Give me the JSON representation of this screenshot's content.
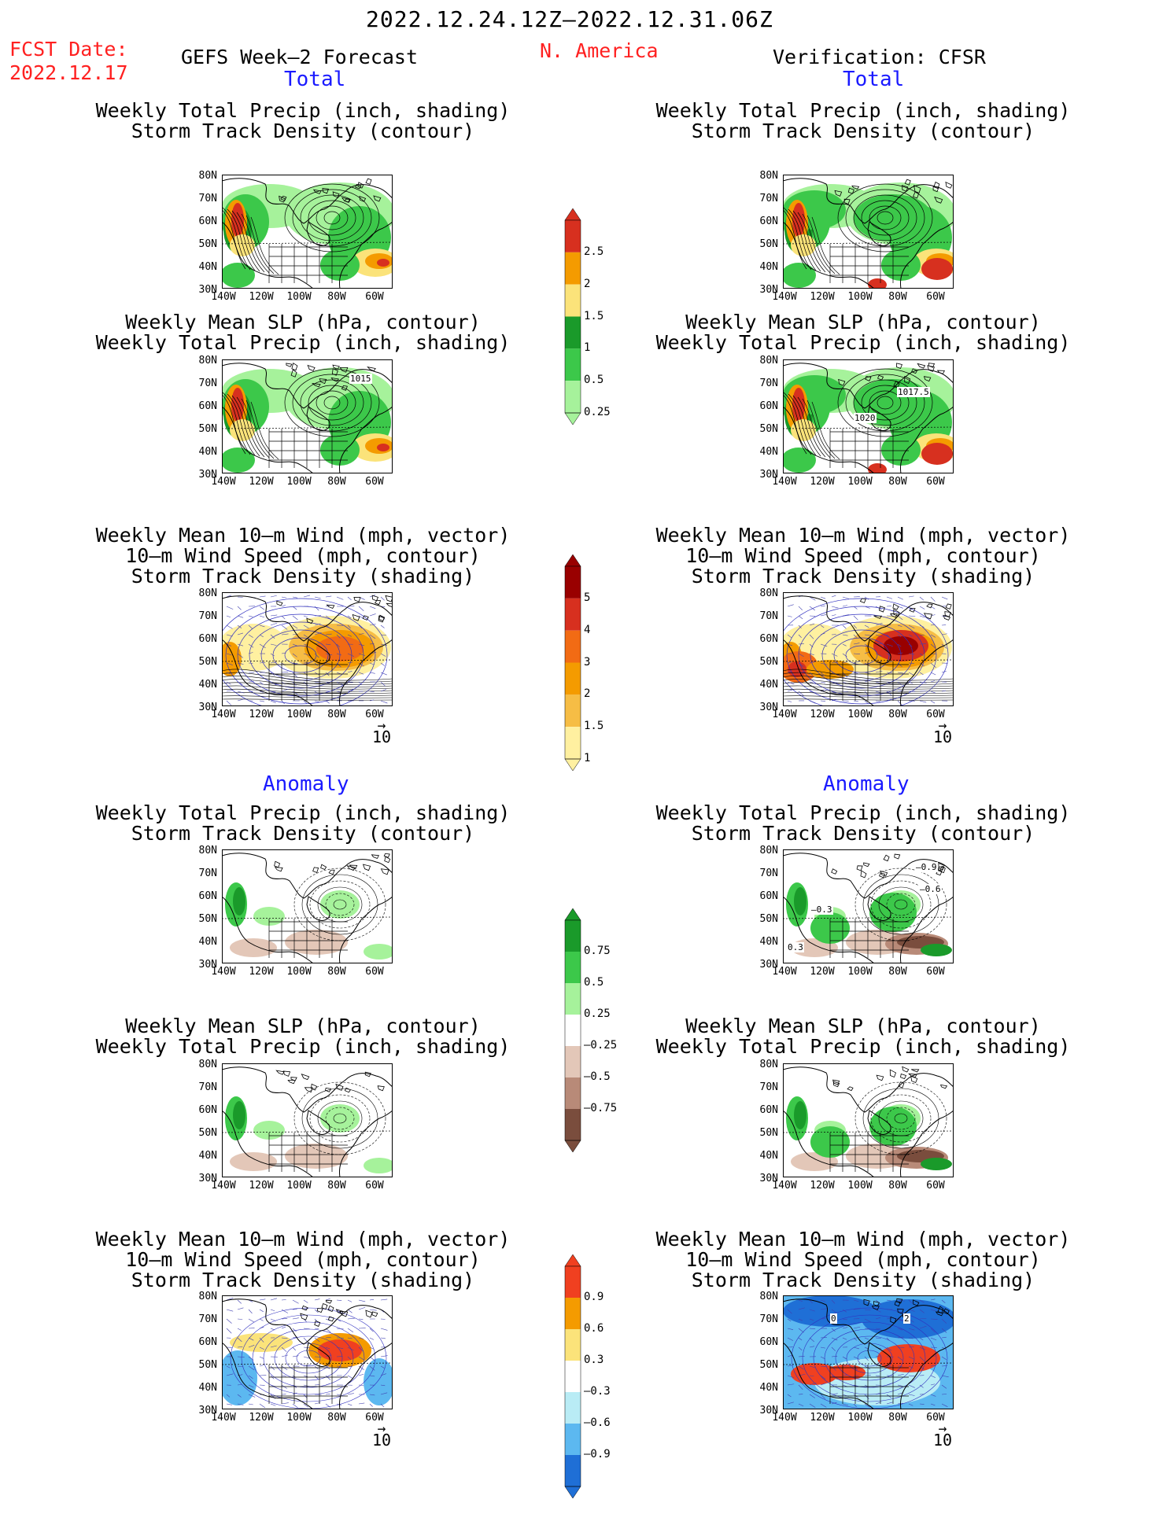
{
  "header": {
    "date_range": "2022.12.24.12Z–2022.12.31.06Z",
    "fcst_date_label": "FCST Date:",
    "fcst_date_value": "2022.12.17",
    "left_title": "GEFS Week–2 Forecast",
    "region": "N. America",
    "right_title": "Verification: CFSR"
  },
  "sections": {
    "total_label": "Total",
    "anomaly_label": "Anomaly"
  },
  "panel_titles": {
    "precip_track": [
      "Weekly Total Precip (inch, shading)",
      "Storm Track Density (contour)"
    ],
    "slp_precip": [
      "Weekly Mean SLP (hPa, contour)",
      "Weekly Total Precip (inch, shading)"
    ],
    "wind_track": [
      "Weekly Mean 10–m Wind (mph, vector)",
      "10–m Wind Speed (mph, contour)",
      "Storm Track Density (shading)"
    ]
  },
  "axes": {
    "lat_ticks": [
      "80N",
      "70N",
      "60N",
      "50N",
      "40N",
      "30N"
    ],
    "lon_ticks": [
      "140W",
      "120W",
      "100W",
      "80W",
      "60W"
    ]
  },
  "vector_ref": "10",
  "contour_labels": {
    "fcst_slp": "1015",
    "verif_slp_a": "1017.5",
    "verif_slp_b": "1020",
    "anom_a": "0.3",
    "anom_b": "–0.3",
    "anom_c": "–0.6",
    "anom_d": "–0.9",
    "zero": "0",
    "two": "2"
  },
  "colorbars": {
    "precip": {
      "labels": [
        "2.5",
        "2",
        "1.5",
        "1",
        "0.5",
        "0.25"
      ],
      "colors": [
        "#d7301f",
        "#f49b00",
        "#fbe37a",
        "#1a9a2a",
        "#3cc84a",
        "#a6f29b"
      ]
    },
    "track": {
      "labels": [
        "5",
        "4",
        "3",
        "2",
        "1.5",
        "1"
      ],
      "colors": [
        "#990000",
        "#d7301f",
        "#f26b14",
        "#f49b00",
        "#f6bd45",
        "#fff0a0"
      ]
    },
    "precip_anom": {
      "labels": [
        "0.75",
        "0.5",
        "0.25",
        "–0.25",
        "–0.5",
        "–0.75"
      ],
      "colors": [
        "#1a9a2a",
        "#3cc84a",
        "#a6f29b",
        "#ffffff",
        "#e3c7b8",
        "#b88a78",
        "#7a4d3d"
      ]
    },
    "track_anom": {
      "labels": [
        "0.9",
        "0.6",
        "0.3",
        "–0.3",
        "–0.6",
        "–0.9"
      ],
      "colors": [
        "#f04020",
        "#f49b00",
        "#fbe37a",
        "#ffffff",
        "#b9ecf5",
        "#5cb8f0",
        "#1f6fd6"
      ]
    }
  }
}
